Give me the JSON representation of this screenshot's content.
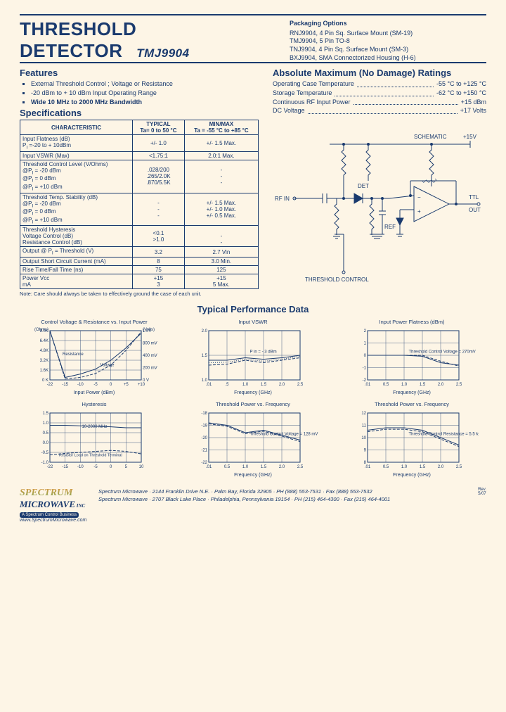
{
  "title_line1": "THRESHOLD",
  "title_line2": "DETECTOR",
  "part_number": "TMJ9904",
  "packaging": {
    "heading": "Packaging Options",
    "items": [
      "RNJ9904, 4 Pin Sq. Surface Mount (SM-19)",
      "TMJ9904, 5 Pin TO-8",
      "TNJ9904, 4 Pin Sq. Surface Mount (SM-3)",
      "BXJ9904, SMA Connectorized Housing (H-6)"
    ]
  },
  "features": {
    "heading": "Features",
    "items": [
      "External Threshold Control ; Voltage or Resistance",
      "-20 dBm to + 10 dBm Input Operating Range",
      "Wide 10 MHz to 2000 MHz Bandwidth"
    ]
  },
  "ratings": {
    "heading": "Absolute Maximum (No Damage) Ratings",
    "rows": [
      {
        "label": "Operating Case Temperature",
        "val": "-55 °C to +125 °C"
      },
      {
        "label": "Storage Temperature",
        "val": "-62 °C to +150 °C"
      },
      {
        "label": "Continuous RF Input Power",
        "val": "+15 dBm"
      },
      {
        "label": "DC Voltage",
        "val": "+17 Volts"
      }
    ]
  },
  "spec": {
    "heading": "Specifications",
    "cols": [
      "CHARACTERISTIC",
      "TYPICAL",
      "MIN/MAX"
    ],
    "sub": [
      "",
      "Ta= 0 to 50 °C",
      "Ta = -55 °C to +85 °C"
    ],
    "rows": [
      [
        "Input Flatness (dB)\nP<sub>I</sub> =-20 to + 10dBm",
        "+/- 1.0",
        "+/- 1.5  Max."
      ],
      [
        "Input VSWR (Max)",
        "<1.75:1",
        "2.0:1  Max."
      ],
      [
        "Threshold Control Level (V/Ohms)\n@P<sub>I</sub> = -20 dBm\n@P<sub>I</sub> =  0 dBm\n@P<sub>I</sub> = +10 dBm",
        ".028/200\n.265/2.0K\n.870/5.5K",
        "-\n-\n-"
      ],
      [
        "Threshold Temp. Stability (dB)\n@P<sub>I</sub> = -20 dBm\n@P<sub>I</sub> =  0 dBm\n@P<sub>I</sub> = +10 dBm",
        "-\n-\n-",
        "+/- 1.5 Max.\n+/- 1.0 Max.\n+/- 0.5 Max."
      ],
      [
        "Threshold Hysteresis\nVoltage Control (dB)\nResistance Control (dB)",
        "<0.1\n>1.0",
        "\n-\n-"
      ],
      [
        "Output @ P<sub>I</sub> = Threshold (V)",
        "3.2",
        "2.7  Vin"
      ],
      [
        "Output Short Circuit Current (mA)",
        "8",
        "3.0  Min."
      ],
      [
        "Rise Time/Fall Time (ns)",
        "75",
        "125"
      ],
      [
        "Power        Vcc\n                  mA",
        "+15\n3",
        "+15\n5 Max."
      ]
    ],
    "note": "Note: Care should always be taken to effectively ground the case of each unit."
  },
  "schematic": {
    "label": "SCHEMATIC",
    "rf_in": "RF IN",
    "v15": "+15V",
    "ttl_out": "TTL\nOUT",
    "det": "DET",
    "ref": "REF",
    "thresh_ctrl": "THRESHOLD CONTROL"
  },
  "perf_heading": "Typical Performance Data",
  "charts": [
    {
      "title": "Control Voltage & Resistance vs. Input Power",
      "yl_left": "(Ohms)",
      "yl_right": "(Volts)",
      "y_left": [
        "8.0K",
        "6.4K",
        "4.8K",
        "3.2K",
        "1.6K",
        "0 K"
      ],
      "y_right": [
        "1.0V",
        "800 mV",
        "400 mV",
        "200 mV",
        "0 V"
      ],
      "x": [
        "-22",
        "-15",
        "-10",
        "-5",
        "0",
        "+5",
        "+10"
      ],
      "xlabel": "Input Power (dBm)",
      "series": [
        "Resistance",
        "Voltage"
      ]
    },
    {
      "title": "Input VSWR",
      "y": [
        "2.0",
        "1.5",
        "1.0"
      ],
      "x": [
        ".01",
        ".5",
        "1.0",
        "1.5",
        "2.0",
        "2.5"
      ],
      "xlabel": "Frequency (GHz)",
      "note": "P in = - 3 dBm"
    },
    {
      "title": "Input Power Flatness (dBm)",
      "y": [
        "2",
        "1",
        "0",
        "-1",
        "-2"
      ],
      "x": [
        ".01",
        "0.5",
        "1.0",
        "1.5",
        "2.0",
        "2.5"
      ],
      "xlabel": "Frequency (GHz)",
      "note": "Threshold Control Voltage = 270mV"
    },
    {
      "title": "Hysteresis",
      "y": [
        "1.5",
        "1.0",
        "0.5",
        "0.0",
        "-0.5",
        "-1.0"
      ],
      "x": [
        "-22",
        "-15",
        "-10",
        "-5",
        "0",
        "5",
        "10"
      ],
      "xlabel": "",
      "note1": "10-2000 MHz",
      "note2": "Resistor Load on Threshold Terminal"
    },
    {
      "title": "Threshold Power vs. Frequency",
      "y": [
        "-18",
        "-19",
        "-20",
        "-21",
        "-22"
      ],
      "x": [
        ".01",
        "0.5",
        "1.0",
        "1.5",
        "2.0",
        "2.5"
      ],
      "xlabel": "Frequency (GHz)",
      "note": "Threshold Control Voltage = 128 mV"
    },
    {
      "title": "Threshold Power vs. Frequency",
      "y": [
        "12",
        "11",
        "10",
        "9",
        "8"
      ],
      "x": [
        ".01",
        "0.5",
        "1.0",
        "1.5",
        "2.0",
        "2.5"
      ],
      "xlabel": "Frequency (GHz)",
      "note": "Threshold Control Resistance = 5.5 kΩ"
    }
  ],
  "chart_colors": {
    "line": "#1a3a6e",
    "grid": "#1a3a6e",
    "bg": "none"
  },
  "footer": {
    "logo_top": "SPECTRUM",
    "logo_bot": "MICROWAVE",
    "logo_tag": "A Spectrum Control Business",
    "url": "www.SpectrumMicrowave.com",
    "addr1": "Spectrum Microwave · 2144 Franklin Drive N.E. · Palm Bay, Florida 32905 · PH (888) 553-7531 · Fax (888) 553-7532",
    "addr2": "Spectrum Microwave · 2707 Black Lake Place · Philadelphia, Pennsylvania 19154 · PH (215) 464-4300 · Fax (215) 464-4001",
    "rev": "Rev.\n5/07"
  }
}
